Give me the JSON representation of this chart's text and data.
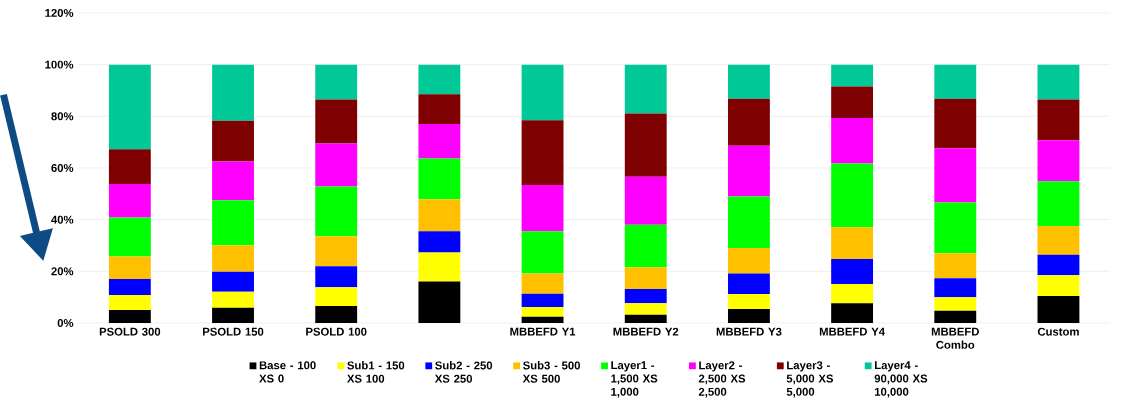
{
  "chart_data": {
    "type": "bar",
    "stacked": true,
    "categories": [
      "PSOLD 300",
      "PSOLD 150",
      "PSOLD 100",
      null,
      "MBBEFD Y1",
      "MBBEFD Y2",
      "MBBEFD Y3",
      "MBBEFD Y4",
      "MBBEFD Combo",
      "Custom"
    ],
    "series": [
      {
        "name": "Base - 100 XS 0",
        "color": "#000000",
        "values": [
          5.0,
          5.9,
          6.6,
          16.1,
          2.4,
          3.2,
          5.4,
          7.6,
          4.7,
          10.4
        ]
      },
      {
        "name": "Sub1 - 150 XS 100",
        "color": "#ffff00",
        "values": [
          5.8,
          6.2,
          7.2,
          11.2,
          3.8,
          4.4,
          5.8,
          7.5,
          5.3,
          8.1
        ]
      },
      {
        "name": "Sub2 - 250 XS 250",
        "color": "#0000ff",
        "values": [
          6.2,
          7.7,
          8.2,
          8.2,
          5.1,
          5.6,
          8.0,
          9.7,
          7.3,
          7.9
        ]
      },
      {
        "name": "Sub3 - 500 XS 500",
        "color": "#ffc000",
        "values": [
          8.7,
          10.3,
          11.6,
          12.4,
          7.9,
          8.4,
          9.8,
          12.3,
          9.7,
          11.1
        ]
      },
      {
        "name": "Layer1 - 1,500 XS 1,000",
        "color": "#00ff00",
        "values": [
          15.1,
          17.4,
          19.2,
          15.8,
          16.3,
          16.4,
          20.0,
          24.6,
          19.6,
          17.4
        ]
      },
      {
        "name": "Layer2 - 2,500 XS 2,500",
        "color": "#ff00ff",
        "values": [
          13.0,
          15.0,
          16.7,
          13.3,
          17.9,
          18.6,
          19.6,
          17.6,
          21.0,
          15.8
        ]
      },
      {
        "name": "Layer3 - 5,000 XS 5,000",
        "color": "#7f0000",
        "values": [
          13.4,
          15.8,
          17.0,
          11.5,
          25.1,
          24.5,
          18.2,
          12.2,
          19.2,
          15.8
        ]
      },
      {
        "name": "Layer4 - 90,000 XS 10,000",
        "color": "#00c896",
        "values": [
          32.8,
          21.7,
          13.5,
          11.5,
          21.5,
          18.9,
          13.2,
          8.5,
          13.2,
          13.5
        ]
      }
    ],
    "ylim": [
      0,
      120
    ],
    "yticks": [
      {
        "value": 0,
        "label": "0%"
      },
      {
        "value": 20,
        "label": "20%"
      },
      {
        "value": 40,
        "label": "40%"
      },
      {
        "value": 60,
        "label": "60%"
      },
      {
        "value": 80,
        "label": "80%"
      },
      {
        "value": 100,
        "label": "100%"
      },
      {
        "value": 120,
        "label": "120%"
      }
    ],
    "grid": "y",
    "legend": "bottom"
  }
}
